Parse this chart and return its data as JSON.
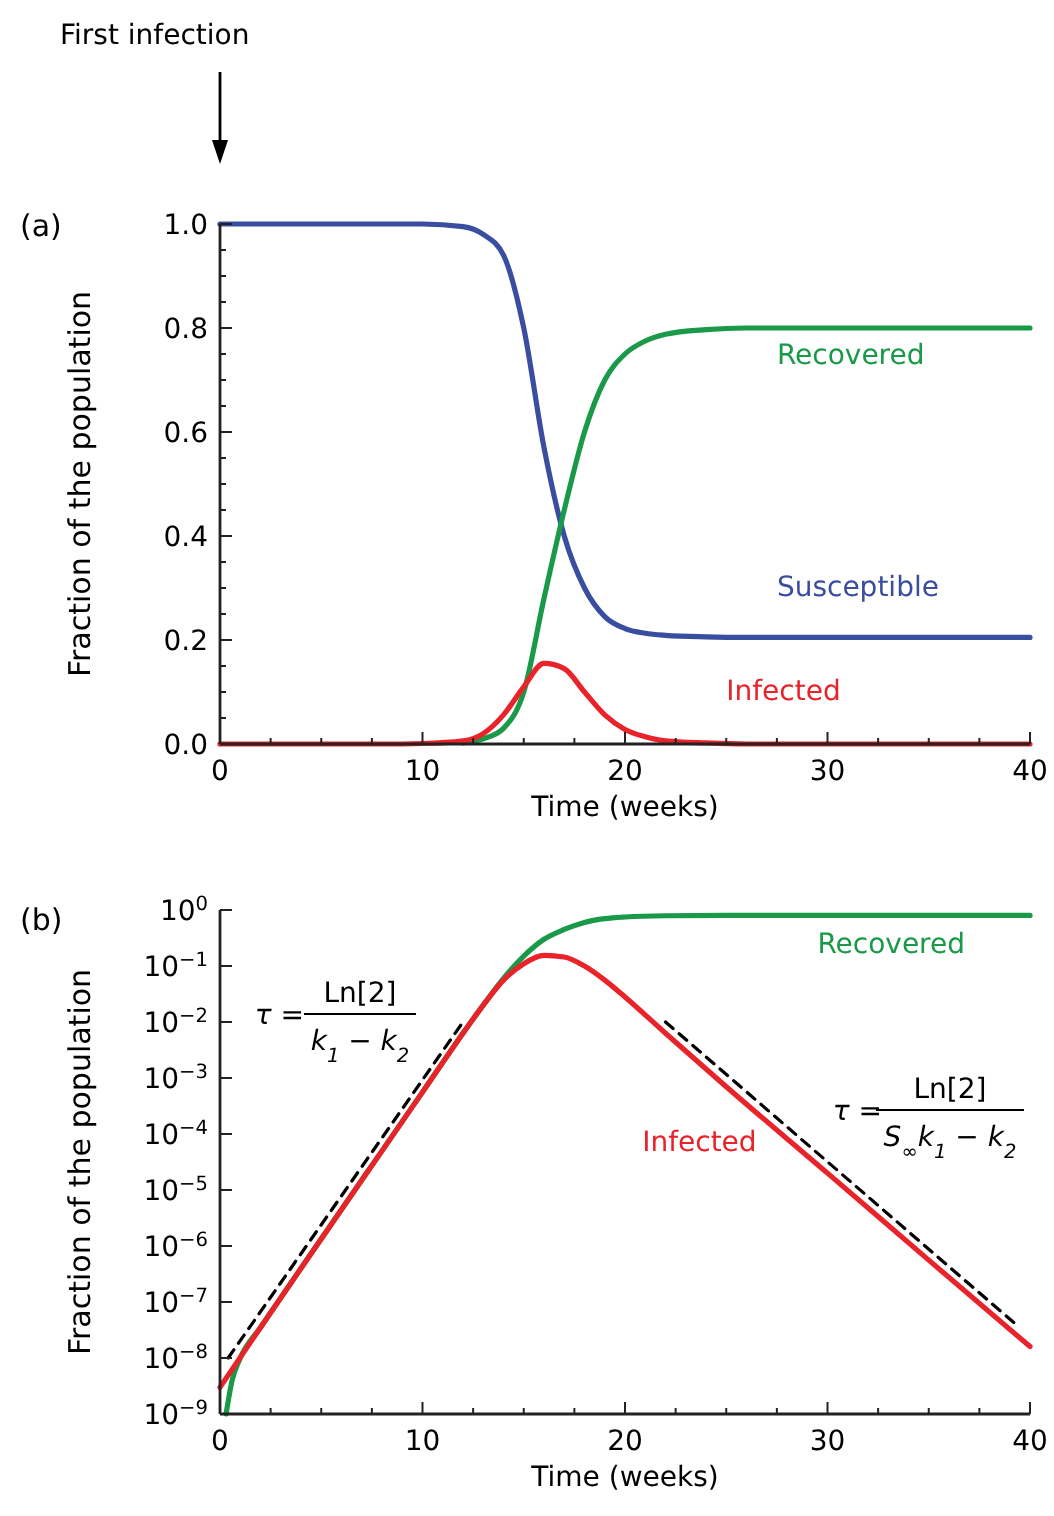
{
  "chart_data": [
    {
      "type": "line",
      "xlabel": "Time (weeks)",
      "ylabel": "Fraction of the population",
      "xlim": [
        0,
        40
      ],
      "ylim": [
        0,
        1
      ],
      "xticks": [
        0,
        {
          "value": 2.5,
          "label": null
        },
        {
          "value": 5,
          "label": null
        },
        {
          "value": 7.5,
          "label": null
        },
        10,
        {
          "value": 12.5,
          "label": null
        },
        {
          "value": 15,
          "label": null
        },
        {
          "value": 17.5,
          "label": null
        },
        20,
        {
          "value": 22.5,
          "label": null
        },
        {
          "value": 25,
          "label": null
        },
        {
          "value": 27.5,
          "label": null
        },
        30,
        {
          "value": 32.5,
          "label": null
        },
        {
          "value": 35,
          "label": null
        },
        {
          "value": 37.5,
          "label": null
        },
        40
      ],
      "yticks": [
        {
          "value": 0,
          "label": "0.0"
        },
        {
          "value": 0.05,
          "label": null
        },
        {
          "value": 0.1,
          "label": null
        },
        {
          "value": 0.15,
          "label": null
        },
        0.2,
        {
          "value": 0.25,
          "label": null
        },
        {
          "value": 0.3,
          "label": null
        },
        {
          "value": 0.35,
          "label": null
        },
        0.4,
        {
          "value": 0.45,
          "label": null
        },
        {
          "value": 0.5,
          "label": null
        },
        {
          "value": 0.55,
          "label": null
        },
        0.6,
        {
          "value": 0.65,
          "label": null
        },
        {
          "value": 0.7,
          "label": null
        },
        {
          "value": 0.75,
          "label": null
        },
        0.8,
        {
          "value": 0.85,
          "label": null
        },
        {
          "value": 0.9,
          "label": null
        },
        {
          "value": 0.95,
          "label": null
        },
        {
          "value": 1,
          "label": "1.0"
        }
      ],
      "x": [
        0,
        4,
        8,
        10,
        12,
        13,
        14,
        15,
        16,
        17,
        18,
        19,
        20,
        21,
        22,
        24,
        26,
        30,
        35,
        40
      ],
      "series": [
        {
          "name": "Susceptible",
          "color": "#3a4ea0",
          "values": [
            1,
            1,
            1,
            1,
            0.995,
            0.98,
            0.94,
            0.8,
            0.57,
            0.4,
            0.3,
            0.245,
            0.222,
            0.213,
            0.209,
            0.206,
            0.205,
            0.205,
            0.205,
            0.205
          ]
        },
        {
          "name": "Recovered",
          "color": "#1a9a48",
          "values": [
            null,
            null,
            null,
            null,
            0.002,
            0.01,
            0.03,
            0.1,
            0.28,
            0.45,
            0.6,
            0.7,
            0.75,
            0.775,
            0.788,
            0.797,
            0.8,
            0.8,
            0.8,
            0.8
          ]
        },
        {
          "name": "Infected",
          "color": "#e8232a",
          "values": [
            0,
            0,
            0,
            0.001,
            0.006,
            0.02,
            0.056,
            0.11,
            0.155,
            0.145,
            0.1,
            0.056,
            0.028,
            0.014,
            0.006,
            0.002,
            0,
            0,
            0,
            0
          ]
        }
      ],
      "annotations": [
        "(a)",
        "First infection"
      ]
    },
    {
      "type": "line",
      "xlabel": "Time (weeks)",
      "ylabel": "Fraction of the population",
      "xlim": [
        0,
        40
      ],
      "ylim": [
        1e-09,
        1
      ],
      "log": "y",
      "xticks": [
        0,
        {
          "value": 2.5,
          "label": null
        },
        {
          "value": 5,
          "label": null
        },
        {
          "value": 7.5,
          "label": null
        },
        10,
        {
          "value": 12.5,
          "label": null
        },
        {
          "value": 15,
          "label": null
        },
        {
          "value": 17.5,
          "label": null
        },
        20,
        {
          "value": 22.5,
          "label": null
        },
        {
          "value": 25,
          "label": null
        },
        {
          "value": 27.5,
          "label": null
        },
        30,
        {
          "value": 32.5,
          "label": null
        },
        {
          "value": 35,
          "label": null
        },
        {
          "value": 37.5,
          "label": null
        },
        40
      ],
      "yticks": [
        {
          "value": 1e-09,
          "label": "10$^{−9}$"
        },
        {
          "value": 1e-08,
          "label": "10$^{−8}$"
        },
        {
          "value": 1e-07,
          "label": "10$^{−7}$"
        },
        {
          "value": 1e-06,
          "label": "10$^{−6}$"
        },
        {
          "value": 1e-05,
          "label": "10$^{−5}$"
        },
        {
          "value": 0.0001,
          "label": "10$^{−4}$"
        },
        {
          "value": 0.001,
          "label": "10$^{−3}$"
        },
        {
          "value": 0.01,
          "label": "10$^{−2}$"
        },
        {
          "value": 0.1,
          "label": "10$^{−1}$"
        },
        {
          "value": 1,
          "label": "10$^{0}$"
        }
      ],
      "series": [
        {
          "name": "Recovered",
          "color": "#1a9a48",
          "x": [
            0.3,
            0.6,
            1,
            2,
            4,
            6,
            8,
            10,
            12,
            13,
            14,
            15,
            16,
            17,
            18,
            19,
            20,
            22,
            25,
            30,
            40
          ],
          "values": [
            1e-09,
            4e-09,
            1e-08,
            3.5e-08,
            4e-07,
            4.5e-06,
            5e-05,
            0.00056,
            0.0063,
            0.02,
            0.06,
            0.15,
            0.3,
            0.45,
            0.6,
            0.7,
            0.75,
            0.79,
            0.8,
            0.8,
            0.8
          ]
        },
        {
          "name": "Infected",
          "color": "#e8232a",
          "x": [
            0,
            2,
            4,
            6,
            8,
            10,
            12,
            13,
            14,
            15,
            16,
            17,
            18,
            19,
            20,
            22,
            25,
            30,
            35,
            40
          ],
          "values": [
            3e-09,
            3.5e-08,
            4e-07,
            4.5e-06,
            5e-05,
            0.00056,
            0.0063,
            0.02,
            0.056,
            0.11,
            0.155,
            0.145,
            0.1,
            0.056,
            0.028,
            0.0063,
            0.0007,
            2e-05,
            5.6e-07,
            1.6e-08
          ]
        },
        {
          "type": "line",
          "color": "#000000",
          "line_style": "dashed",
          "x": [
            0.4,
            12
          ],
          "values": [
            1e-08,
            0.01
          ]
        },
        {
          "type": "line",
          "color": "#000000",
          "line_style": "dashed",
          "x": [
            22,
            39.3
          ],
          "values": [
            0.01,
            4e-08
          ]
        }
      ],
      "annotations": [
        "(b)",
        "τ =",
        "Ln[2]",
        "k$_{1}$ − k$_{2}$",
        "τ =",
        "Ln[2]",
        "S$_{∞}$k$_{1}$ − k$_{2}$"
      ]
    }
  ]
}
